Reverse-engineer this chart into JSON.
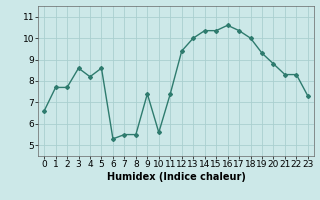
{
  "x": [
    0,
    1,
    2,
    3,
    4,
    5,
    6,
    7,
    8,
    9,
    10,
    11,
    12,
    13,
    14,
    15,
    16,
    17,
    18,
    19,
    20,
    21,
    22,
    23
  ],
  "y": [
    6.6,
    7.7,
    7.7,
    8.6,
    8.2,
    8.6,
    5.3,
    5.5,
    5.5,
    7.4,
    5.6,
    7.4,
    9.4,
    10.0,
    10.35,
    10.35,
    10.6,
    10.35,
    10.0,
    9.3,
    8.8,
    8.3,
    8.3,
    7.3
  ],
  "line_color": "#2e7b6e",
  "marker": "D",
  "marker_size": 2.0,
  "bg_color": "#cce8e8",
  "grid_color": "#aacfcf",
  "xlabel": "Humidex (Indice chaleur)",
  "xlim": [
    -0.5,
    23.5
  ],
  "ylim": [
    4.5,
    11.5
  ],
  "yticks": [
    5,
    6,
    7,
    8,
    9,
    10,
    11
  ],
  "xticks": [
    0,
    1,
    2,
    3,
    4,
    5,
    6,
    7,
    8,
    9,
    10,
    11,
    12,
    13,
    14,
    15,
    16,
    17,
    18,
    19,
    20,
    21,
    22,
    23
  ],
  "xlabel_fontsize": 7,
  "tick_fontsize": 6.5,
  "line_width": 1.0
}
